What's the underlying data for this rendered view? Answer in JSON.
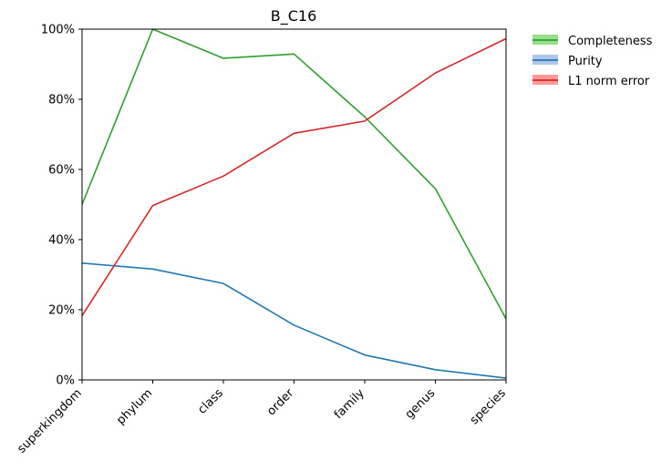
{
  "chart_data": {
    "type": "line",
    "title": "B_C16",
    "xlabel": "",
    "ylabel": "",
    "categories": [
      "superkingdom",
      "phylum",
      "class",
      "order",
      "family",
      "genus",
      "species"
    ],
    "ylim": [
      0,
      100
    ],
    "y_ticks": [
      0,
      20,
      40,
      60,
      80,
      100
    ],
    "y_tick_labels": [
      "0%",
      "20%",
      "40%",
      "60%",
      "80%",
      "100%"
    ],
    "grid": false,
    "legend_position": "outside-top-right",
    "series": [
      {
        "name": "Completeness",
        "color": "#2ca02c",
        "band_color": "#98df8a",
        "values": [
          50,
          100,
          91.7,
          92.9,
          75,
          54.5,
          17.4
        ]
      },
      {
        "name": "Purity",
        "color": "#1f77b4",
        "band_color": "#aec7e8",
        "values": [
          33.3,
          31.6,
          27.5,
          15.6,
          7.1,
          2.9,
          0.5
        ]
      },
      {
        "name": "L1 norm error",
        "color": "#d62728",
        "band_color": "#ff9896",
        "values": [
          18.3,
          49.7,
          58.1,
          70.3,
          73.8,
          87.5,
          97.3
        ]
      }
    ]
  }
}
